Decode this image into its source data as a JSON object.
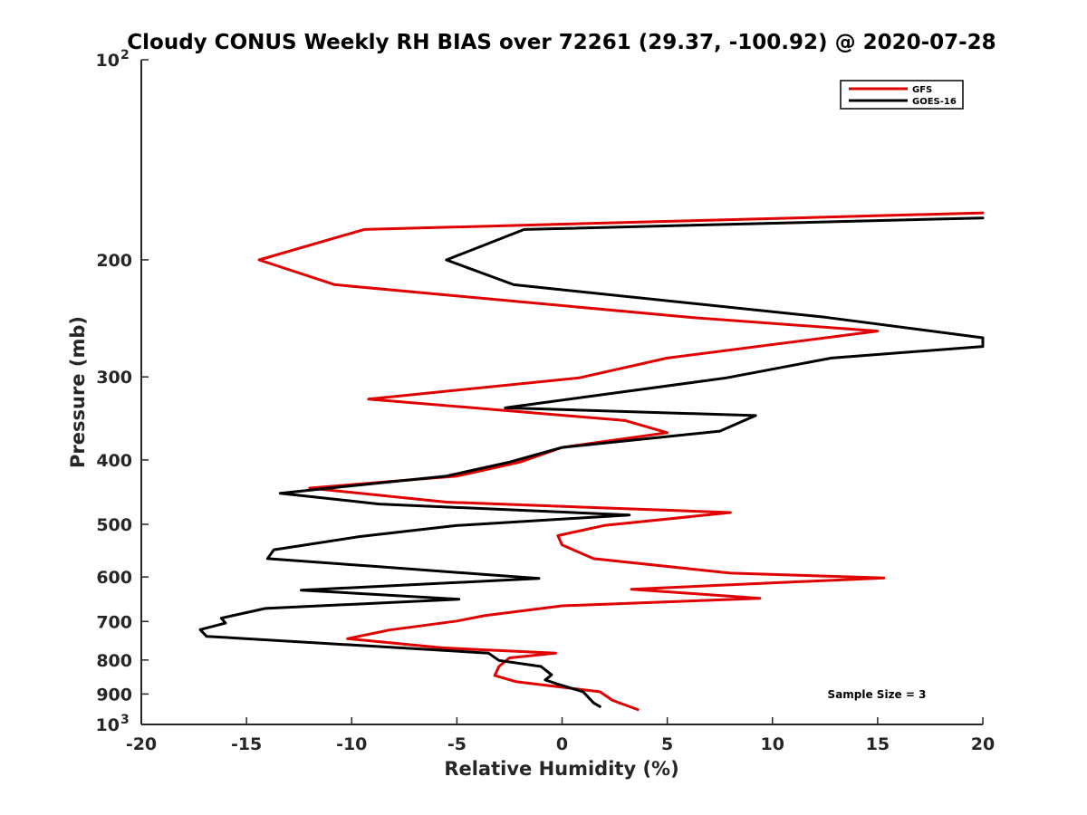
{
  "chart_data": {
    "type": "line",
    "title": "Cloudy CONUS Weekly RH BIAS over 72261 (29.37, -100.92) @ 2020-07-28",
    "xlabel": "Relative Humidity (%)",
    "ylabel": "Pressure (mb)",
    "xlim": [
      -20,
      20
    ],
    "ylim": [
      100,
      1000
    ],
    "y_scale": "log",
    "y_reversed": true,
    "grid": false,
    "legend_position": "top-right",
    "x_ticks": [
      {
        "value": -20,
        "label": "-20"
      },
      {
        "value": -15,
        "label": "-15"
      },
      {
        "value": -10,
        "label": "-10"
      },
      {
        "value": -5,
        "label": "-5"
      },
      {
        "value": 0,
        "label": "0"
      },
      {
        "value": 5,
        "label": "5"
      },
      {
        "value": 10,
        "label": "10"
      },
      {
        "value": 15,
        "label": "15"
      },
      {
        "value": 20,
        "label": "20"
      }
    ],
    "y_ticks": [
      {
        "value": 100,
        "label": "10",
        "sup": "2"
      },
      {
        "value": 200,
        "label": "200",
        "sup": ""
      },
      {
        "value": 300,
        "label": "300",
        "sup": ""
      },
      {
        "value": 400,
        "label": "400",
        "sup": ""
      },
      {
        "value": 500,
        "label": "500",
        "sup": ""
      },
      {
        "value": 600,
        "label": "600",
        "sup": ""
      },
      {
        "value": 700,
        "label": "700",
        "sup": ""
      },
      {
        "value": 800,
        "label": "800",
        "sup": ""
      },
      {
        "value": 900,
        "label": "900",
        "sup": ""
      },
      {
        "value": 1000,
        "label": "10",
        "sup": "3"
      }
    ],
    "series": [
      {
        "name": "GFS",
        "color": "#e00000",
        "points": [
          [
            20,
            170
          ],
          [
            -9.4,
            180
          ],
          [
            -14.4,
            200
          ],
          [
            -10.8,
            218
          ],
          [
            6,
            244
          ],
          [
            15.0,
            256
          ],
          [
            5,
            281
          ],
          [
            0.8,
            301
          ],
          [
            -9.2,
            324
          ],
          [
            3.0,
            349
          ],
          [
            5,
            364
          ],
          [
            0,
            383
          ],
          [
            -2,
            403
          ],
          [
            -5,
            423
          ],
          [
            -12,
            441
          ],
          [
            -5.5,
            463
          ],
          [
            8,
            480
          ],
          [
            2,
            502
          ],
          [
            -0.2,
            520
          ],
          [
            0,
            537
          ],
          [
            1.5,
            563
          ],
          [
            8,
            592
          ],
          [
            15.3,
            602
          ],
          [
            3.3,
            626
          ],
          [
            9.4,
            646
          ],
          [
            0,
            663
          ],
          [
            -3.7,
            686
          ],
          [
            -5,
            699
          ],
          [
            -8.2,
            721
          ],
          [
            -10.2,
            743
          ],
          [
            -5.7,
            767
          ],
          [
            -0.3,
            781
          ],
          [
            -2.5,
            794
          ],
          [
            -3.0,
            818
          ],
          [
            -3.2,
            844
          ],
          [
            -2.2,
            862
          ],
          [
            1.8,
            893
          ],
          [
            2.4,
            920
          ],
          [
            3.6,
            950
          ]
        ]
      },
      {
        "name": "GOES-16",
        "color": "#000000",
        "points": [
          [
            20,
            173
          ],
          [
            -1.8,
            180
          ],
          [
            -5.5,
            200
          ],
          [
            -2.3,
            218
          ],
          [
            12.5,
            244
          ],
          [
            20,
            262
          ],
          [
            20,
            270
          ],
          [
            12.8,
            281
          ],
          [
            7.8,
            301
          ],
          [
            -2.7,
            334
          ],
          [
            9.2,
            343
          ],
          [
            7.5,
            362
          ],
          [
            0,
            383
          ],
          [
            -2.5,
            403
          ],
          [
            -5.5,
            423
          ],
          [
            -13.4,
            449
          ],
          [
            -8.7,
            466
          ],
          [
            3.2,
            484
          ],
          [
            -5,
            502
          ],
          [
            -9.7,
            522
          ],
          [
            -13.7,
            546
          ],
          [
            -14.0,
            563
          ],
          [
            -9.0,
            578
          ],
          [
            -1.1,
            603
          ],
          [
            -12.4,
            628
          ],
          [
            -4.9,
            648
          ],
          [
            -14.1,
            669
          ],
          [
            -16.2,
            692
          ],
          [
            -16.0,
            704
          ],
          [
            -17.2,
            720
          ],
          [
            -16.9,
            737
          ],
          [
            -3.5,
            781
          ],
          [
            -3.0,
            801
          ],
          [
            -1.0,
            818
          ],
          [
            -0.5,
            842
          ],
          [
            -0.8,
            857
          ],
          [
            -0.2,
            870
          ],
          [
            1.0,
            893
          ],
          [
            1.2,
            907
          ],
          [
            1.5,
            928
          ],
          [
            1.8,
            940
          ]
        ]
      }
    ],
    "annotation": "Sample Size = 3"
  }
}
